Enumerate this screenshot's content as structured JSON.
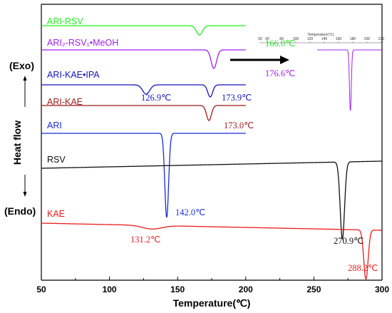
{
  "chart_data": {
    "type": "line",
    "xlabel": "Temperature(℃)",
    "ylabel": "Heat flow",
    "exo_label": "(Exo)",
    "endo_label": "(Endo)",
    "xlim": [
      50,
      300
    ],
    "xticks": [
      50,
      100,
      150,
      200,
      250,
      300
    ],
    "series": [
      {
        "name": "ARI-RSV",
        "color": "#22ee22",
        "x_start": 50,
        "x_end": 200,
        "baseline_offset": 0,
        "peaks": [
          {
            "x": 166.0,
            "depth": 13,
            "width": 2.2,
            "label": "166.0℃"
          }
        ]
      },
      {
        "name": "ARI₂-RSV₁•MeOH",
        "color": "#a020f0",
        "x_start": 50,
        "x_end": 200,
        "baseline_offset": 0,
        "peaks": [
          {
            "x": 176.6,
            "depth": 26,
            "width": 2.0,
            "label": "176.6℃"
          }
        ]
      },
      {
        "name": "ARI-KAE•IPA",
        "color": "#1515b8",
        "x_start": 50,
        "x_end": 200,
        "baseline_offset": 0,
        "peaks": [
          {
            "x": 126.9,
            "depth": 13,
            "width": 2.6,
            "label": "126.9℃"
          },
          {
            "x": 173.9,
            "depth": 17,
            "width": 1.8,
            "label": "173.9℃"
          }
        ]
      },
      {
        "name": "ARI-KAE",
        "color": "#9b1b1b",
        "x_start": 50,
        "x_end": 200,
        "baseline_offset": 0,
        "peaks": [
          {
            "x": 173.0,
            "depth": 21,
            "width": 1.8,
            "label": "173.0℃"
          }
        ]
      },
      {
        "name": "ARI",
        "color": "#1a2bd8",
        "x_start": 50,
        "x_end": 200,
        "baseline_offset": 0,
        "peaks": [
          {
            "x": 142.0,
            "depth": 118,
            "width": 1.4,
            "label": "142.0℃"
          }
        ]
      },
      {
        "name": "RSV",
        "color": "#111111",
        "x_start": 50,
        "x_end": 300,
        "baseline_offset": 10,
        "peaks": [
          {
            "x": 270.9,
            "depth": 108,
            "width": 1.6,
            "label": "270.9℃"
          }
        ]
      },
      {
        "name": "KAE",
        "color": "#ee1c1c",
        "x_start": 50,
        "x_end": 300,
        "baseline_offset": -10,
        "peaks": [
          {
            "x": 131.2,
            "depth": 5,
            "width": 7,
            "label": "131.2℃"
          },
          {
            "x": 288.2,
            "depth": 69,
            "width": 1.6,
            "label": "288.2℃"
          }
        ]
      }
    ],
    "inset": {
      "title": "Temperature(℃)",
      "color": "#a020f0",
      "xlim": [
        50,
        220
      ],
      "xticks": [
        50,
        60,
        80,
        100,
        120,
        140,
        160,
        180,
        200,
        220
      ],
      "peak": {
        "x": 176.6,
        "depth": 85,
        "width": 1.3
      }
    }
  }
}
